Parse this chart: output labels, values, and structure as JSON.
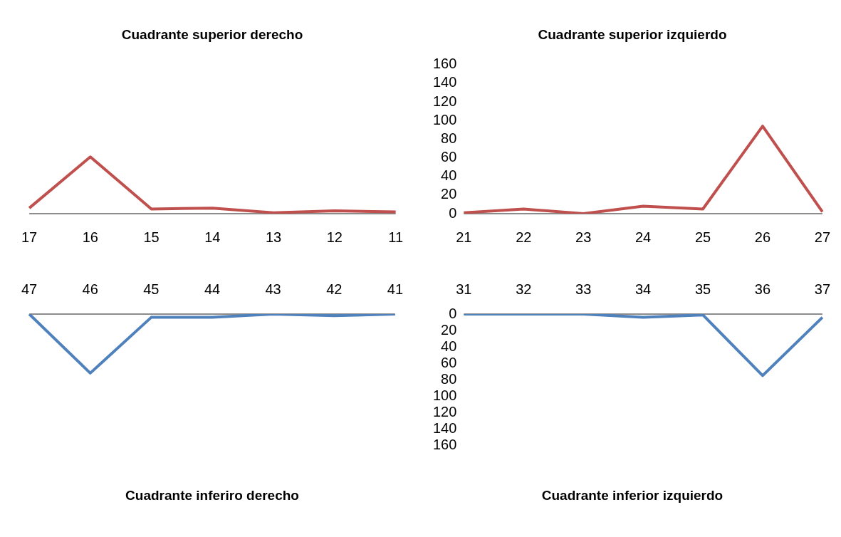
{
  "chart_data": [
    {
      "type": "line",
      "title": "Cuadrante superior derecho",
      "categories": [
        "17",
        "16",
        "15",
        "14",
        "13",
        "12",
        "11"
      ],
      "series": [
        {
          "color": "#c0504d",
          "values": [
            6,
            61,
            5,
            6,
            1,
            3,
            2
          ]
        }
      ],
      "ylim": [
        0,
        160
      ],
      "yticks": [
        0,
        20,
        40,
        60,
        80,
        100,
        120,
        140,
        160
      ],
      "tick_labels": "x",
      "legend": false,
      "grid": false
    },
    {
      "type": "line",
      "title": "Cuadrante superior izquierdo",
      "categories": [
        "21",
        "22",
        "23",
        "24",
        "25",
        "26",
        "27"
      ],
      "series": [
        {
          "color": "#c0504d",
          "values": [
            1,
            5,
            0,
            8,
            5,
            94,
            2
          ]
        }
      ],
      "ylim": [
        0,
        160
      ],
      "yticks": [
        0,
        20,
        40,
        60,
        80,
        100,
        120,
        140,
        160
      ],
      "legend": false,
      "grid": false
    },
    {
      "type": "line",
      "title": "Cuadrante inferiro derecho",
      "categories": [
        "47",
        "46",
        "45",
        "44",
        "43",
        "42",
        "41"
      ],
      "series": [
        {
          "color": "#4f81bd",
          "values": [
            0,
            72,
            4,
            4,
            0,
            2,
            0
          ]
        }
      ],
      "ylim": [
        160,
        0
      ],
      "yticks": [
        0,
        20,
        40,
        60,
        80,
        100,
        120,
        140,
        160
      ],
      "tick_labels": "x",
      "legend": false,
      "grid": false
    },
    {
      "type": "line",
      "title": "Cuadrante inferior izquierdo",
      "categories": [
        "31",
        "32",
        "33",
        "34",
        "35",
        "36",
        "37"
      ],
      "series": [
        {
          "color": "#4f81bd",
          "values": [
            0,
            0,
            0,
            4,
            1,
            75,
            4
          ]
        }
      ],
      "ylim": [
        160,
        0
      ],
      "yticks": [
        0,
        20,
        40,
        60,
        80,
        100,
        120,
        140,
        160
      ],
      "legend": false,
      "grid": false
    }
  ]
}
